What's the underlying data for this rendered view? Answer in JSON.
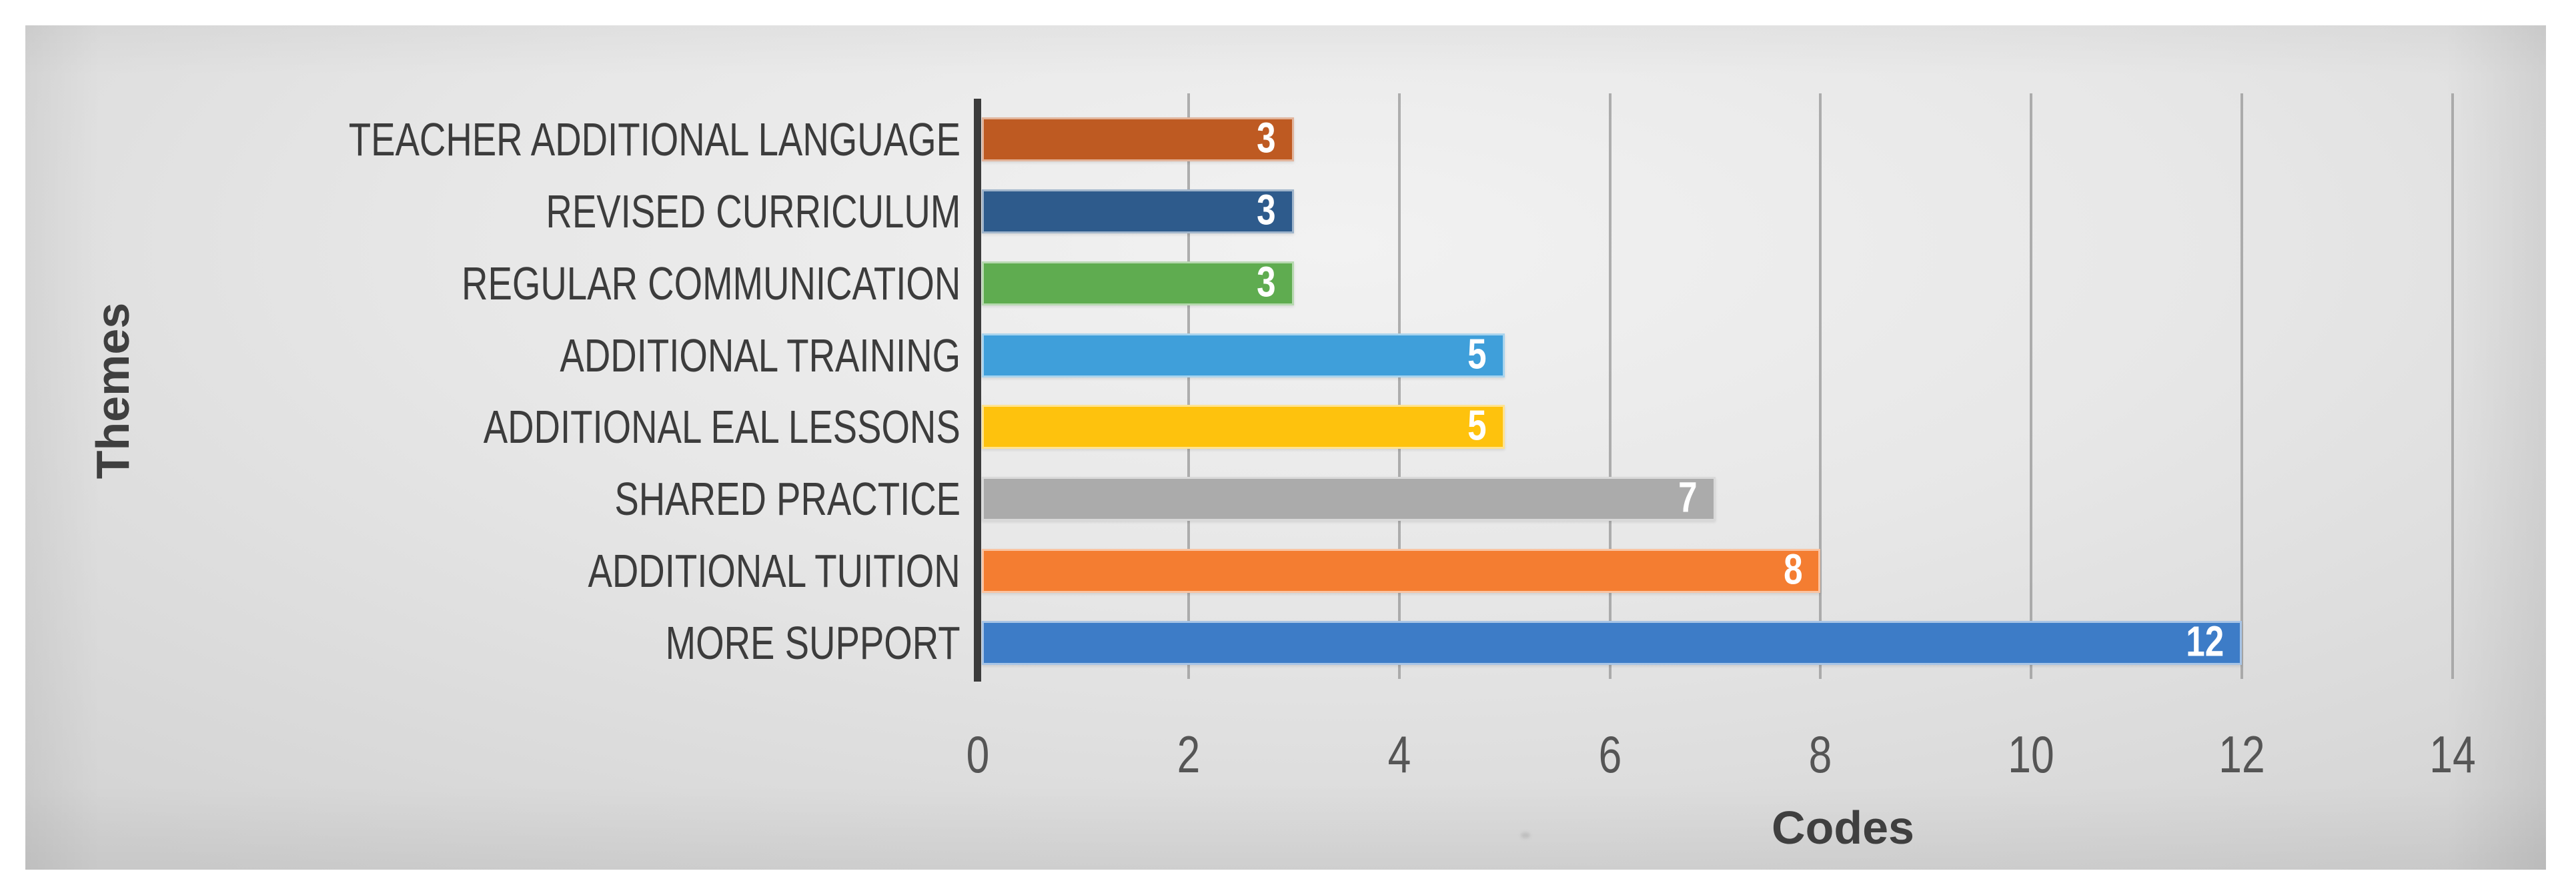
{
  "chart_data": {
    "type": "bar",
    "orientation": "horizontal",
    "title": "",
    "xlabel": "Codes",
    "ylabel": "Themes",
    "categories": [
      "TEACHER ADDITIONAL LANGUAGE",
      "REVISED CURRICULUM",
      "REGULAR COMMUNICATION",
      "ADDITIONAL TRAINING",
      "ADDITIONAL EAL LESSONS",
      "SHARED PRACTICE",
      "ADDITIONAL TUITION",
      "MORE SUPPORT"
    ],
    "values": [
      3,
      3,
      3,
      5,
      5,
      7,
      8,
      12
    ],
    "bar_colors": [
      "#BE5A22",
      "#2E5B8C",
      "#5FAC50",
      "#3F9FDA",
      "#FEC20D",
      "#ABABAB",
      "#F47D31",
      "#3D7CC7"
    ],
    "value_labels": [
      "3",
      "3",
      "3",
      "5",
      "5",
      "7",
      "8",
      "12"
    ],
    "value_label_position": "inside-end",
    "value_label_color": "#FFFFFF",
    "xlim": [
      0,
      14
    ],
    "xticks": [
      "0",
      "2",
      "4",
      "6",
      "8",
      "10",
      "12",
      "14"
    ],
    "grid": "vertical-major",
    "legend": "none"
  },
  "colors": {
    "page_background": "#FFFFFF",
    "panel_light": "#F2F2F2",
    "panel_dark": "#D3D3D3",
    "gridline": "#9C9C9C",
    "axis_line": "#3B3B3B",
    "category_text": "#3C3C3C",
    "tick_text": "#555555",
    "axis_title_text": "#3F3F3F"
  }
}
